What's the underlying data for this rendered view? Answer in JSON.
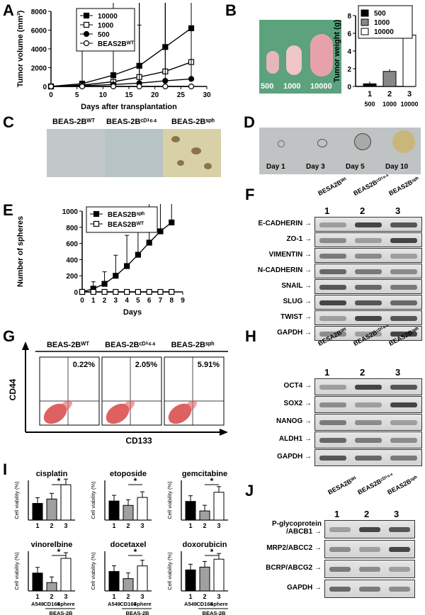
{
  "panels": {
    "A": {
      "letter": "A",
      "chart_data": {
        "type": "line",
        "ylabel": "Tumor volume (mm³)",
        "xlabel": "Days after transplantation",
        "xlim": [
          0,
          30
        ],
        "ylim": [
          0,
          8000
        ],
        "xticks": [
          "0",
          "5",
          "10",
          "15",
          "20",
          "25",
          "30"
        ],
        "yticks": [
          "0",
          "2000",
          "4000",
          "6000",
          "8000"
        ],
        "x": [
          0,
          6,
          12,
          17,
          22,
          27
        ],
        "series": [
          {
            "name": "10000",
            "values": [
              0,
              300,
              1200,
              2200,
              4200,
              6200
            ],
            "marker": "filled-square"
          },
          {
            "name": "1000",
            "values": [
              0,
              150,
              500,
              1000,
              1600,
              2600
            ],
            "marker": "open-square"
          },
          {
            "name": "500",
            "values": [
              0,
              80,
              200,
              350,
              600,
              800
            ],
            "marker": "filled-circle"
          },
          {
            "name": "BEAS2Bᵂᵀ",
            "values": [
              0,
              0,
              0,
              0,
              0,
              0
            ],
            "marker": "open-circle"
          }
        ]
      }
    },
    "B": {
      "letter": "B",
      "photo_labels": [
        "500",
        "1000",
        "10000"
      ],
      "chart_data": {
        "type": "bar",
        "ylabel": "Tumor weight (g)",
        "ylim": [
          0,
          8
        ],
        "yticks": [
          "0",
          "2",
          "4",
          "6",
          "8"
        ],
        "categories": [
          "1",
          "2",
          "3"
        ],
        "sub_categories": [
          "500",
          "1000",
          "10000"
        ],
        "values": [
          0.3,
          1.7,
          5.8
        ],
        "legend": [
          "500",
          "1000",
          "10000"
        ],
        "colors": [
          "#000000",
          "#888888",
          "#ffffff"
        ]
      }
    },
    "C": {
      "letter": "C",
      "labels": [
        "BEAS-2Bᵂᵀ",
        "BEAS-2Bᶜᴰ¹⁶⁴",
        "BEAS-2Bˢᵖʰ"
      ]
    },
    "D": {
      "letter": "D",
      "labels": [
        "Day 1",
        "Day 3",
        "Day 5",
        "Day 10"
      ]
    },
    "E": {
      "letter": "E",
      "chart_data": {
        "type": "line",
        "ylabel": "Number of spheres",
        "xlabel": "Days",
        "xlim": [
          0,
          9
        ],
        "ylim": [
          0,
          1000
        ],
        "xticks": [
          "0",
          "1",
          "2",
          "3",
          "4",
          "5",
          "6",
          "7",
          "8",
          "9"
        ],
        "yticks": [
          "0",
          "200",
          "400",
          "600",
          "800",
          "1000"
        ],
        "x": [
          0,
          1,
          2,
          3,
          4,
          5,
          6,
          7,
          8
        ],
        "series": [
          {
            "name": "BEAS2Bˢᵖʰ",
            "values": [
              0,
              40,
              100,
              200,
              320,
              460,
              610,
              750,
              860
            ],
            "marker": "filled-square"
          },
          {
            "name": "BEAS2Bᵂᵀ",
            "values": [
              0,
              0,
              0,
              0,
              0,
              0,
              0,
              0,
              0
            ],
            "marker": "open-square"
          }
        ]
      }
    },
    "F": {
      "letter": "F",
      "lanes": [
        "BESA2Bᵂᵗ",
        "BEAS2Bᶜᴰ¹⁶⁴",
        "BEAS2Bˢᵖʰ"
      ],
      "lane_nums": [
        "1",
        "2",
        "3"
      ],
      "proteins": [
        "E-CADHERIN",
        "ZO-1",
        "VIMENTIN",
        "N-CADHERIN",
        "SNAIL",
        "SLUG",
        "TWIST",
        "GAPDH"
      ]
    },
    "G": {
      "letter": "G",
      "headers": [
        "BEAS-2Bᵂᵀ",
        "BEAS-2Bᶜᴰ¹⁶⁴",
        "BEAS-2Bˢᵖʰ"
      ],
      "percents": [
        "0.22%",
        "2.05%",
        "5.91%"
      ],
      "ylabel": "CD44",
      "xlabel": "CD133"
    },
    "H": {
      "letter": "H",
      "lanes": [
        "BESA2Bᵂᵗ",
        "BEAS2Bᶜᴰ¹⁶⁴",
        "BEAS2Bˢᵖʰ"
      ],
      "lane_nums": [
        "1",
        "2",
        "3"
      ],
      "proteins": [
        "OCT4",
        "SOX2",
        "NANOG",
        "ALDH1",
        "GAPDH"
      ]
    },
    "I": {
      "letter": "I",
      "ylabel": "Cell viability (%)",
      "star": "*",
      "bottom_labels": [
        "A549",
        "CD164",
        "Sphere"
      ],
      "group_label": "BEAS-2B",
      "chart_data": [
        {
          "type": "bar",
          "title": "cisplatin",
          "categories": [
            "1",
            "2",
            "3"
          ],
          "values": [
            0.42,
            0.53,
            0.89
          ],
          "ylim": [
            0,
            1.0
          ]
        },
        {
          "type": "bar",
          "title": "etoposide",
          "categories": [
            "1",
            "2",
            "3"
          ],
          "values": [
            0.48,
            0.37,
            0.57
          ],
          "ylim": [
            0,
            1.0
          ]
        },
        {
          "type": "bar",
          "title": "gemcitabine",
          "categories": [
            "1",
            "2",
            "3"
          ],
          "values": [
            0.47,
            0.23,
            0.7
          ],
          "ylim": [
            0,
            1.0
          ]
        },
        {
          "type": "bar",
          "title": "vinorelbine",
          "categories": [
            "1",
            "2",
            "3"
          ],
          "values": [
            0.45,
            0.21,
            0.82
          ],
          "ylim": [
            0,
            1.0
          ]
        },
        {
          "type": "bar",
          "title": "docetaxel",
          "categories": [
            "1",
            "2",
            "3"
          ],
          "values": [
            0.49,
            0.31,
            0.63
          ],
          "ylim": [
            0,
            1.0
          ]
        },
        {
          "type": "bar",
          "title": "doxorubicin",
          "categories": [
            "1",
            "2",
            "3"
          ],
          "values": [
            0.53,
            0.6,
            0.8
          ],
          "ylim": [
            0,
            1.0
          ]
        }
      ]
    },
    "J": {
      "letter": "J",
      "lanes": [
        "BESA2Bᵂᵗ",
        "BEAS2Bᶜᴰ¹⁶⁴",
        "BEAS2Bˢᵖʰ"
      ],
      "lane_nums": [
        "1",
        "2",
        "3"
      ],
      "proteins": [
        "P-glycoprotein\n/ABCB1",
        "MRP2/ABCC2",
        "BCRP/ABCG2",
        "GAPDH"
      ]
    }
  }
}
